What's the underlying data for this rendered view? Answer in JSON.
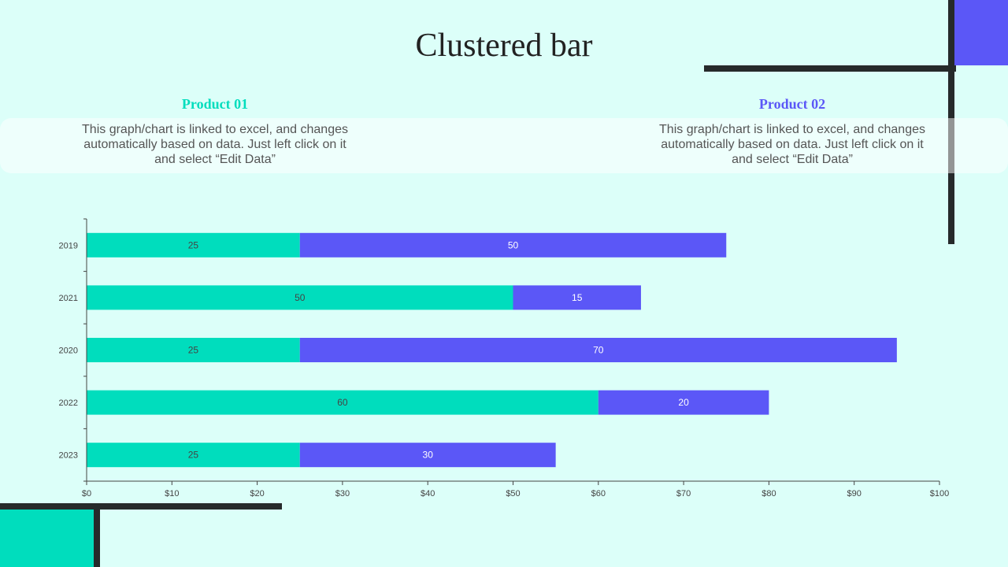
{
  "title": "Clustered bar",
  "products": [
    {
      "heading": "Product 01",
      "description": "This graph/chart is linked to excel, and changes automatically based on data. Just left click on it and select “Edit Data”",
      "color": "#00ddbd"
    },
    {
      "heading": "Product 02",
      "description": "This graph/chart is linked to excel, and changes automatically based on data. Just left click on it and select “Edit Data”",
      "color": "#5b57f7"
    }
  ],
  "chart_data": {
    "type": "bar",
    "orientation": "horizontal",
    "stacked": true,
    "categories": [
      "2019",
      "2021",
      "2020",
      "2022",
      "2023"
    ],
    "series": [
      {
        "name": "Product 01",
        "values": [
          25,
          50,
          25,
          60,
          25
        ],
        "color": "#00ddbd",
        "label_color": "#444444"
      },
      {
        "name": "Product 02",
        "values": [
          50,
          15,
          70,
          20,
          30
        ],
        "color": "#5b57f7",
        "label_color": "#ffffff"
      }
    ],
    "xlim": [
      0,
      100
    ],
    "xticks": [
      0,
      10,
      20,
      30,
      40,
      50,
      60,
      70,
      80,
      90,
      100
    ],
    "xtick_labels": [
      "$0",
      "$10",
      "$20",
      "$30",
      "$40",
      "$50",
      "$60",
      "$70",
      "$80",
      "$90",
      "$100"
    ],
    "grid": false,
    "xlabel": "",
    "ylabel": ""
  }
}
